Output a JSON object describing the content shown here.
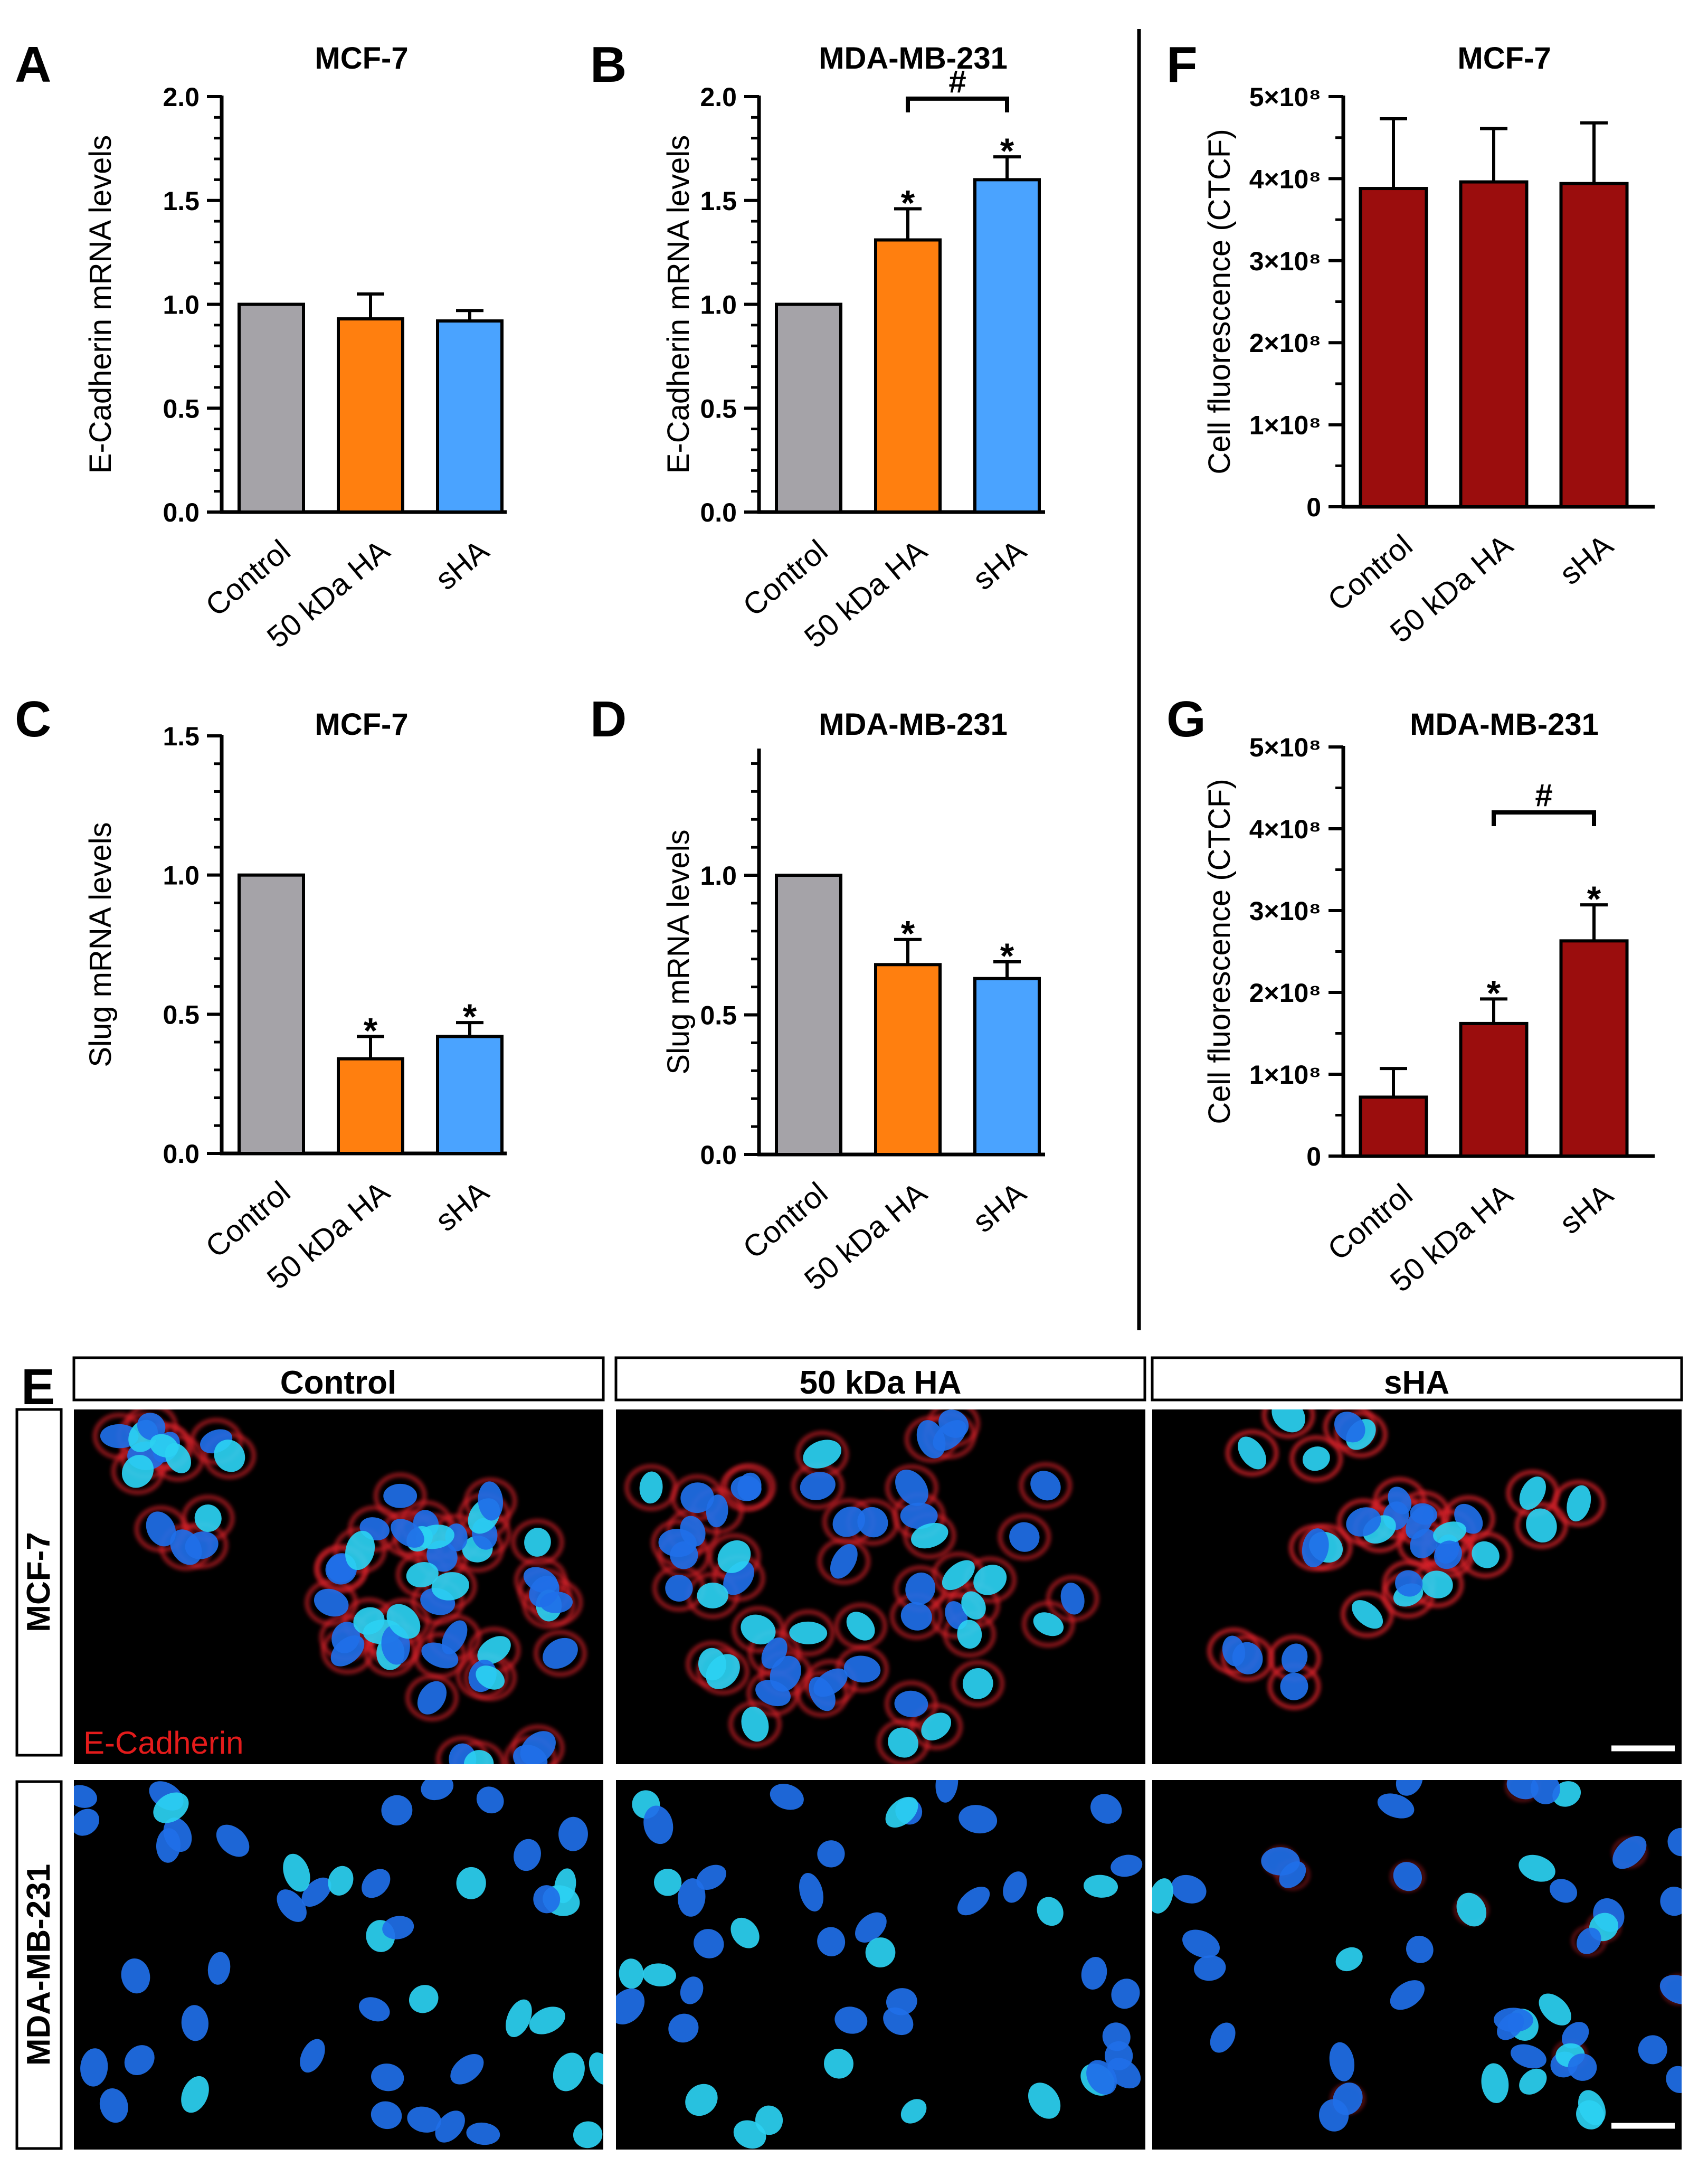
{
  "colors": {
    "control": "#A5A3A8",
    "ha50": "#FF7F0F",
    "sha": "#4AA3FF",
    "ctcf": "#9B0D0D",
    "red_label": "#E31B1B",
    "nucleus": "#1F6FE8",
    "nucleus_bright": "#2BD1F2",
    "membrane": "#D8202B"
  },
  "chart_data": [
    {
      "panel": "A",
      "type": "bar",
      "title": "MCF-7",
      "categories": [
        "Control",
        "50 kDa HA",
        "sHA"
      ],
      "values": [
        1.0,
        0.93,
        0.92
      ],
      "errors": [
        0,
        0.12,
        0.05
      ],
      "ylabel": "E-Cadherin mRNA levels",
      "ylim": [
        0,
        2.0
      ],
      "yticks": [
        "0.0",
        "0.5",
        "1.0",
        "1.5",
        "2.0"
      ],
      "significance": [
        "",
        "",
        ""
      ]
    },
    {
      "panel": "B",
      "type": "bar",
      "title": "MDA-MB-231",
      "categories": [
        "Control",
        "50 kDa HA",
        "sHA"
      ],
      "values": [
        1.0,
        1.31,
        1.6
      ],
      "errors": [
        0,
        0.15,
        0.11
      ],
      "ylabel": "E-Cadherin mRNA levels",
      "ylim": [
        0,
        2.0
      ],
      "yticks": [
        "0.0",
        "0.5",
        "1.0",
        "1.5",
        "2.0"
      ],
      "significance": [
        "",
        "*",
        "*"
      ],
      "bracket": {
        "from": 1,
        "to": 2,
        "label": "#",
        "level": 1.99
      }
    },
    {
      "panel": "C",
      "type": "bar",
      "title": "MCF-7",
      "categories": [
        "Control",
        "50 kDa HA",
        "sHA"
      ],
      "values": [
        1.0,
        0.34,
        0.42
      ],
      "errors": [
        0,
        0.08,
        0.05
      ],
      "ylabel": "Slug mRNA levels",
      "ylim": [
        0,
        1.5
      ],
      "yticks": [
        "0.0",
        "0.5",
        "1.0",
        "1.5"
      ],
      "significance": [
        "",
        "*",
        "*"
      ]
    },
    {
      "panel": "D",
      "type": "bar",
      "title": "MDA-MB-231",
      "categories": [
        "Control",
        "50 kDa HA",
        "sHA"
      ],
      "values": [
        1.0,
        0.68,
        0.63
      ],
      "errors": [
        0,
        0.09,
        0.06
      ],
      "ylabel": "Slug mRNA levels",
      "ylim": [
        0,
        1.45
      ],
      "yticks": [
        "0.0",
        "0.5",
        "1.0"
      ],
      "significance": [
        "",
        "*",
        "*"
      ]
    },
    {
      "panel": "F",
      "type": "bar",
      "title": "MCF-7",
      "categories": [
        "Control",
        "50 kDa HA",
        "sHA"
      ],
      "values": [
        388000000.0,
        396000000.0,
        394000000.0
      ],
      "errors": [
        85000000.0,
        65000000.0,
        74000000.0
      ],
      "ylabel": "Cell fluorescence (CTCF)",
      "ylim": [
        0,
        500000000.0
      ],
      "yticks": [
        "0",
        "1×10⁸",
        "2×10⁸",
        "3×10⁸",
        "4×10⁸",
        "5×10⁸"
      ],
      "significance": [
        "",
        "",
        ""
      ]
    },
    {
      "panel": "G",
      "type": "bar",
      "title": "MDA-MB-231",
      "categories": [
        "Control",
        "50 kDa HA",
        "sHA"
      ],
      "values": [
        72000000.0,
        162000000.0,
        263000000.0
      ],
      "errors": [
        35000000.0,
        30000000.0,
        44000000.0
      ],
      "ylabel": "Cell fluorescence (CTCF)",
      "ylim": [
        0,
        500000000.0
      ],
      "yticks": [
        "0",
        "1×10⁸",
        "2×10⁸",
        "3×10⁸",
        "4×10⁸",
        "5×10⁸"
      ],
      "significance": [
        "",
        "*",
        "*"
      ],
      "bracket": {
        "from": 1,
        "to": 2,
        "label": "#",
        "level": 420000000.0
      }
    }
  ],
  "micrographs": {
    "panel": "E",
    "columns": [
      "Control",
      "50 kDa HA",
      "sHA"
    ],
    "rows": [
      "MCF-7",
      "MDA-MB-231"
    ],
    "stain_label": "E-Cadherin"
  }
}
